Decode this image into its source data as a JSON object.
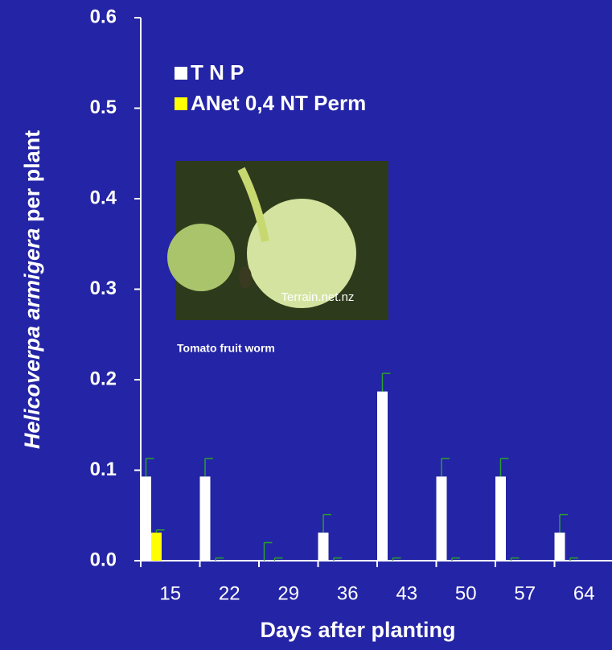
{
  "chart_data": {
    "type": "bar",
    "xlabel": "Days after planting",
    "ylabel": [
      "Helicoverpa armigera",
      "per plant"
    ],
    "categories": [
      "15",
      "22",
      "29",
      "36",
      "43",
      "50",
      "57",
      "64"
    ],
    "series": [
      {
        "name": "T N P",
        "color": "#ffffff",
        "values": [
          0.093,
          0.093,
          0,
          0.031,
          0.187,
          0.093,
          0.093,
          0.031
        ],
        "errors": [
          0.02,
          0.02,
          0.02,
          0.02,
          0.02,
          0.02,
          0.02,
          0.02
        ]
      },
      {
        "name": "ANet 0,4 NT Perm",
        "color": "#ffff00",
        "values": [
          0.031,
          0,
          0,
          0,
          0,
          0,
          0,
          0
        ],
        "errors": [
          0.003,
          0.003,
          0.003,
          0.003,
          0.003,
          0.003,
          0.003,
          0.003
        ]
      }
    ],
    "error_color": "#2aa02a",
    "ylim": [
      0,
      0.6
    ],
    "yticks": [
      {
        "value": 0,
        "label": "0.0"
      },
      0.1,
      0.2,
      0.3,
      0.4,
      0.5,
      0.6
    ],
    "annotations": [
      "Terrain.net.nz",
      "Tomato fruit worm"
    ]
  }
}
